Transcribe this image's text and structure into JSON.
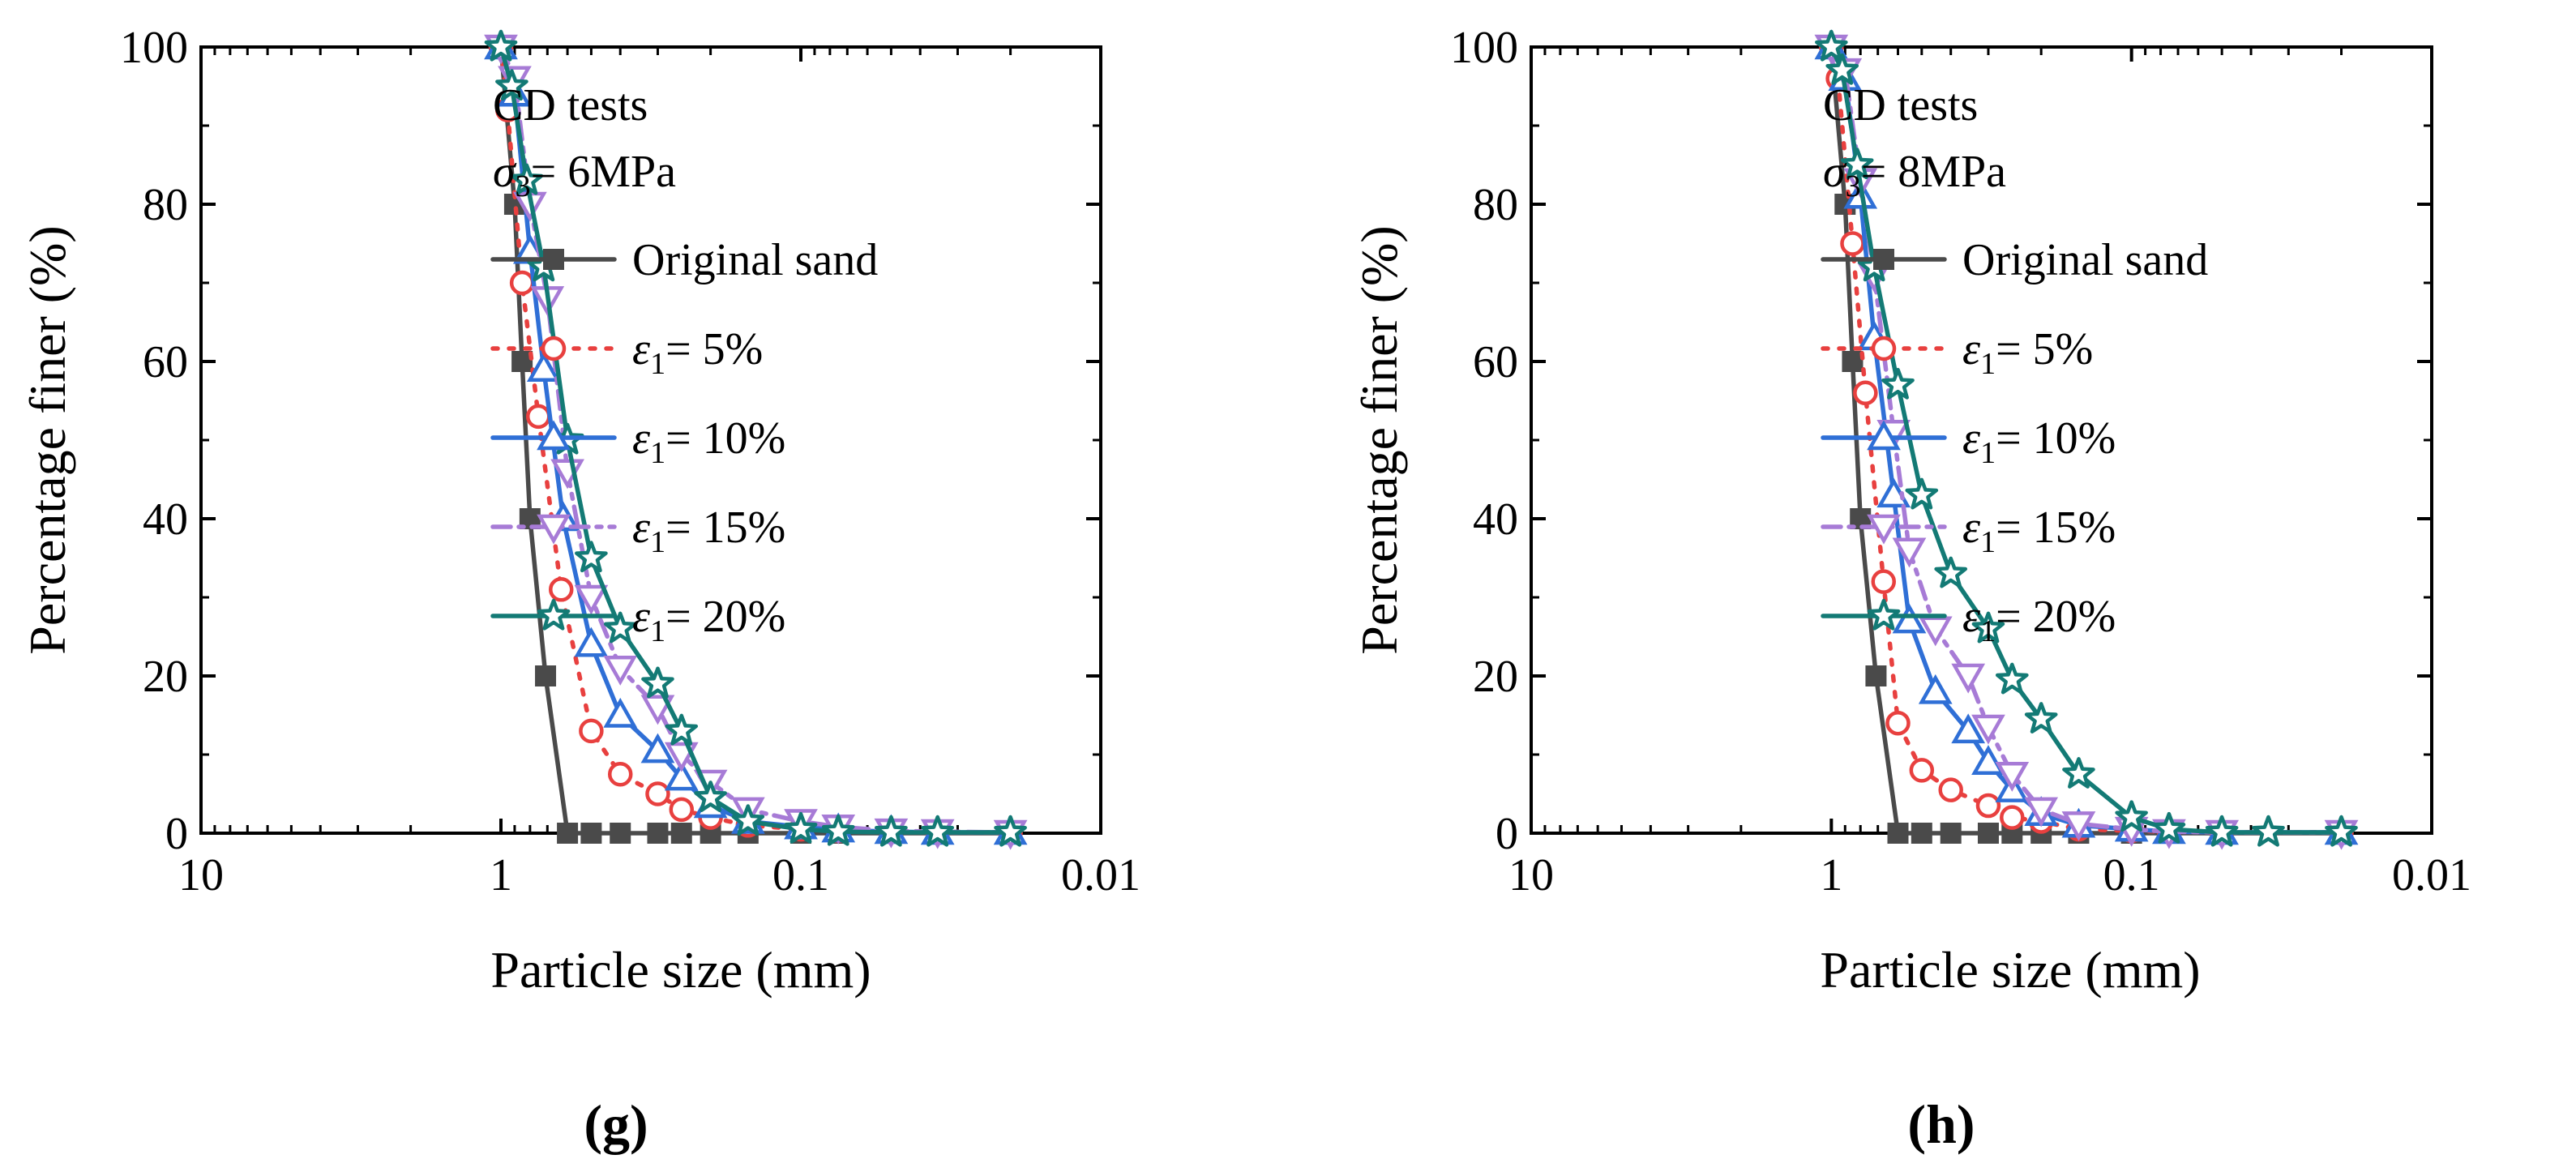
{
  "chart_data": [
    {
      "type": "line",
      "panel_label": "g",
      "xlabel": "Particle size (mm)",
      "ylabel": "Percentage finer (%)",
      "xscale": "log",
      "xaxis_reversed": true,
      "xlim": [
        10,
        0.01
      ],
      "ylim": [
        0,
        100
      ],
      "xticks": [
        "10",
        "1",
        "0.1",
        "0.01"
      ],
      "yticks": [
        "0",
        "20",
        "40",
        "60",
        "80",
        "100"
      ],
      "annotation": {
        "line1": "CD tests",
        "sym": "σ",
        "sub": "3",
        "rest": "= 6MPa"
      },
      "legend_position": "top-right",
      "series": [
        {
          "name": "Original sand",
          "sym": "",
          "sub": "",
          "rest": "",
          "color": "#4a4a4a",
          "marker": "square",
          "dash": "solid",
          "x": [
            1.0,
            0.9,
            0.85,
            0.8,
            0.71,
            0.6,
            0.5,
            0.4,
            0.3,
            0.25,
            0.2,
            0.15,
            0.1,
            0.075,
            0.05,
            0.02
          ],
          "y": [
            100,
            80,
            60,
            40,
            20,
            0,
            0,
            0,
            0,
            0,
            0,
            0,
            0,
            0,
            0,
            0
          ]
        },
        {
          "name": "",
          "sym": "ε",
          "sub": "1",
          "rest": "= 5%",
          "color": "#e8403f",
          "marker": "circle",
          "dash": "dot",
          "x": [
            1.0,
            0.95,
            0.85,
            0.75,
            0.63,
            0.5,
            0.4,
            0.3,
            0.25,
            0.2,
            0.15,
            0.1,
            0.075,
            0.05,
            0.035,
            0.02
          ],
          "y": [
            100,
            92,
            70,
            53,
            31,
            13,
            7.5,
            5,
            3,
            2,
            1,
            0.5,
            0.3,
            0.2,
            0.1,
            0.1
          ]
        },
        {
          "name": "",
          "sym": "ε",
          "sub": "1",
          "rest": "= 10%",
          "color": "#2f6fd6",
          "marker": "triangle-up",
          "dash": "solid",
          "x": [
            1.0,
            0.9,
            0.8,
            0.72,
            0.62,
            0.5,
            0.4,
            0.3,
            0.25,
            0.2,
            0.15,
            0.1,
            0.075,
            0.05,
            0.035,
            0.02
          ],
          "y": [
            100,
            94,
            74,
            59,
            40,
            24,
            15,
            10.5,
            7,
            3.5,
            1.5,
            0.8,
            0.4,
            0.2,
            0.1,
            0.1
          ]
        },
        {
          "name": "",
          "sym": "ε",
          "sub": "1",
          "rest": "= 15%",
          "color": "#a77bd6",
          "marker": "triangle-down",
          "dash": "dashdot",
          "x": [
            1.0,
            0.9,
            0.8,
            0.7,
            0.6,
            0.5,
            0.4,
            0.3,
            0.25,
            0.2,
            0.15,
            0.1,
            0.075,
            0.05,
            0.035,
            0.02
          ],
          "y": [
            100,
            96,
            80,
            68,
            46,
            30,
            21,
            16,
            10,
            6.5,
            3,
            1.5,
            0.8,
            0.3,
            0.2,
            0.1
          ]
        },
        {
          "name": "",
          "sym": "ε",
          "sub": "1",
          "rest": "= 20%",
          "color": "#137a75",
          "marker": "star",
          "dash": "solid",
          "x": [
            1.0,
            0.92,
            0.82,
            0.72,
            0.6,
            0.5,
            0.4,
            0.3,
            0.25,
            0.2,
            0.15,
            0.1,
            0.075,
            0.05,
            0.035,
            0.02
          ],
          "y": [
            100,
            95,
            83,
            72,
            50,
            35,
            26,
            19,
            13,
            4.5,
            1.5,
            0.5,
            0.2,
            0.1,
            0.1,
            0.1
          ]
        }
      ]
    },
    {
      "type": "line",
      "panel_label": "h",
      "xlabel": "Particle size (mm)",
      "ylabel": "Percentage finer (%)",
      "xscale": "log",
      "xaxis_reversed": true,
      "xlim": [
        10,
        0.01
      ],
      "ylim": [
        0,
        100
      ],
      "xticks": [
        "10",
        "1",
        "0.1",
        "0.01"
      ],
      "yticks": [
        "0",
        "20",
        "40",
        "60",
        "80",
        "100"
      ],
      "annotation": {
        "line1": "CD tests",
        "sym": "σ",
        "sub": "3",
        "rest": "= 8MPa"
      },
      "legend_position": "top-right",
      "series": [
        {
          "name": "Original sand",
          "sym": "",
          "sub": "",
          "rest": "",
          "color": "#4a4a4a",
          "marker": "square",
          "dash": "solid",
          "x": [
            1.0,
            0.9,
            0.85,
            0.8,
            0.71,
            0.6,
            0.5,
            0.4,
            0.3,
            0.25,
            0.2,
            0.15,
            0.1,
            0.075,
            0.05,
            0.02
          ],
          "y": [
            100,
            80,
            60,
            40,
            20,
            0,
            0,
            0,
            0,
            0,
            0,
            0,
            0,
            0,
            0,
            0
          ]
        },
        {
          "name": "",
          "sym": "ε",
          "sub": "1",
          "rest": "= 5%",
          "color": "#e8403f",
          "marker": "circle",
          "dash": "dot",
          "x": [
            1.0,
            0.95,
            0.85,
            0.77,
            0.67,
            0.6,
            0.5,
            0.4,
            0.3,
            0.25,
            0.2,
            0.15,
            0.1,
            0.075,
            0.05,
            0.02
          ],
          "y": [
            100,
            96,
            75,
            56,
            32,
            14,
            8,
            5.5,
            3.5,
            2,
            1.5,
            0.5,
            0.3,
            0.2,
            0.1,
            0.1
          ]
        },
        {
          "name": "",
          "sym": "ε",
          "sub": "1",
          "rest": "= 10%",
          "color": "#2f6fd6",
          "marker": "triangle-up",
          "dash": "solid",
          "x": [
            1.0,
            0.9,
            0.8,
            0.72,
            0.62,
            0.55,
            0.45,
            0.35,
            0.3,
            0.25,
            0.2,
            0.15,
            0.1,
            0.075,
            0.05,
            0.02
          ],
          "y": [
            100,
            96,
            81,
            63,
            43,
            27,
            18,
            13,
            9,
            5.5,
            2.5,
            1,
            0.5,
            0.2,
            0.1,
            0.1
          ]
        },
        {
          "name": "",
          "sym": "ε",
          "sub": "1",
          "rest": "= 15%",
          "color": "#a77bd6",
          "marker": "triangle-down",
          "dash": "dashdot",
          "x": [
            1.0,
            0.9,
            0.8,
            0.72,
            0.62,
            0.55,
            0.45,
            0.35,
            0.3,
            0.25,
            0.2,
            0.15,
            0.1,
            0.075,
            0.05,
            0.02
          ],
          "y": [
            100,
            97,
            83,
            71,
            51,
            36,
            26,
            20,
            13.5,
            7.5,
            3,
            1.2,
            0.5,
            0.2,
            0.1,
            0.1
          ]
        },
        {
          "name": "",
          "sym": "ε",
          "sub": "1",
          "rest": "= 20%",
          "color": "#137a75",
          "marker": "star",
          "dash": "solid",
          "x": [
            1.0,
            0.92,
            0.82,
            0.72,
            0.6,
            0.5,
            0.4,
            0.3,
            0.25,
            0.2,
            0.15,
            0.1,
            0.075,
            0.05,
            0.035,
            0.02
          ],
          "y": [
            100,
            97,
            85,
            72,
            57,
            43,
            33,
            26,
            19.5,
            14.5,
            7.5,
            2,
            0.5,
            0.1,
            0.1,
            0.1
          ]
        }
      ]
    }
  ]
}
